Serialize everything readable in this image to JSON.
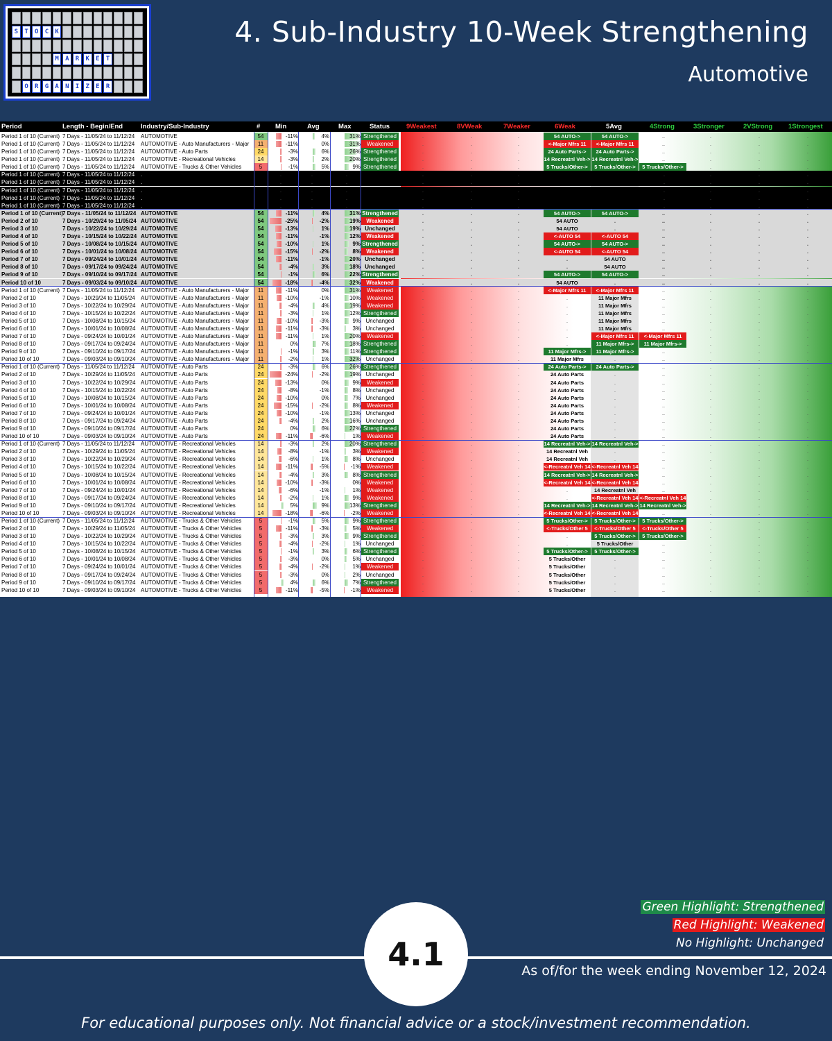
{
  "logo": {
    "words": [
      "STOCK",
      "MARKET",
      "ORGANIZER"
    ]
  },
  "header": {
    "title": "4. Sub-Industry 10-Week Strengthening",
    "subtitle": "Automotive"
  },
  "table": {
    "columns": [
      "Period",
      "Length - Begin/End",
      "Industry/Sub-Industry",
      "#",
      "Min",
      "Avg",
      "Max",
      "Status",
      "9Weakest",
      "8VWeak",
      "7Weaker",
      "6Weak",
      "5Avg",
      "4Strong",
      "3Stronger",
      "2VStrong",
      "1Strongest"
    ],
    "rows": [
      [
        "Period 1 of 10 (Current)",
        "7 Days - 11/05/24 to 11/12/24",
        "AUTOMOTIVE",
        "54",
        "-11%",
        "4%",
        "31%",
        "Strengthened",
        "54 AUTO->",
        "54 AUTO->",
        ""
      ],
      [
        "Period 1 of 10 (Current)",
        "7 Days - 11/05/24 to 11/12/24",
        "AUTOMOTIVE - Auto Manufacturers - Major",
        "11",
        "-11%",
        "0%",
        "31%",
        "Weakened",
        "<-Major Mfrs 11",
        "<-Major Mfrs 11",
        ""
      ],
      [
        "Period 1 of 10 (Current)",
        "7 Days - 11/05/24 to 11/12/24",
        "AUTOMOTIVE - Auto Parts",
        "24",
        "-3%",
        "6%",
        "26%",
        "Strengthened",
        "24 Auto Parts->",
        "24 Auto Parts->",
        ""
      ],
      [
        "Period 1 of 10 (Current)",
        "7 Days - 11/05/24 to 11/12/24",
        "AUTOMOTIVE - Recreational Vehicles",
        "14",
        "-3%",
        "2%",
        "20%",
        "Strengthened",
        "14 Recreatnl Veh->",
        "14 Recreatnl Veh->",
        ""
      ],
      [
        "Period 1 of 10 (Current)",
        "7 Days - 11/05/24 to 11/12/24",
        "AUTOMOTIVE - Trucks & Other Vehicles",
        "5",
        "-1%",
        "5%",
        "9%",
        "Strengthened",
        "5 Trucks/Other->",
        "5 Trucks/Other->",
        "5 Trucks/Other->"
      ],
      [
        "Period 1 of 10 (Current)",
        "7 Days - 11/05/24 to 11/12/24",
        ".",
        "",
        "",
        "",
        "",
        "",
        "",
        "",
        ""
      ],
      [
        "Period 1 of 10 (Current)",
        "7 Days - 11/05/24 to 11/12/24",
        ".",
        "",
        "",
        "",
        "",
        "",
        "",
        "",
        ""
      ],
      [
        "Period 1 of 10 (Current)",
        "7 Days - 11/05/24 to 11/12/24",
        ".",
        "",
        "",
        "",
        "",
        "",
        "",
        "",
        ""
      ],
      [
        "Period 1 of 10 (Current)",
        "7 Days - 11/05/24 to 11/12/24",
        ".",
        "",
        "",
        "",
        "",
        "",
        "",
        "",
        ""
      ],
      [
        "Period 1 of 10 (Current)",
        "7 Days - 11/05/24 to 11/12/24",
        ".",
        "",
        "",
        "",
        "",
        "",
        "",
        "",
        ""
      ],
      [
        "Period 1 of 10 (Current)",
        "7 Days - 11/05/24 to 11/12/24",
        "AUTOMOTIVE",
        "54",
        "-11%",
        "4%",
        "31%",
        "Strengthened",
        "54 AUTO->",
        "54 AUTO->",
        ""
      ],
      [
        "Period 2 of 10",
        "7 Days - 10/29/24 to 11/05/24",
        "AUTOMOTIVE",
        "54",
        "-25%",
        "-2%",
        "19%",
        "Weakened",
        "54 AUTO",
        "",
        ""
      ],
      [
        "Period 3 of 10",
        "7 Days - 10/22/24 to 10/29/24",
        "AUTOMOTIVE",
        "54",
        "-13%",
        "1%",
        "19%",
        "Unchanged",
        "54 AUTO",
        "",
        ""
      ],
      [
        "Period 4 of 10",
        "7 Days - 10/15/24 to 10/22/24",
        "AUTOMOTIVE",
        "54",
        "-11%",
        "-1%",
        "12%",
        "Weakened",
        "<-AUTO 54",
        "<-AUTO 54",
        ""
      ],
      [
        "Period 5 of 10",
        "7 Days - 10/08/24 to 10/15/24",
        "AUTOMOTIVE",
        "54",
        "-10%",
        "1%",
        "9%",
        "Strengthened",
        "54 AUTO->",
        "54 AUTO->",
        ""
      ],
      [
        "Period 6 of 10",
        "7 Days - 10/01/24 to 10/08/24",
        "AUTOMOTIVE",
        "54",
        "-15%",
        "-2%",
        "8%",
        "Weakened",
        "<-AUTO 54",
        "<-AUTO 54",
        ""
      ],
      [
        "Period 7 of 10",
        "7 Days - 09/24/24 to 10/01/24",
        "AUTOMOTIVE",
        "54",
        "-11%",
        "-1%",
        "20%",
        "Unchanged",
        "",
        "54 AUTO",
        ""
      ],
      [
        "Period 8 of 10",
        "7 Days - 09/17/24 to 09/24/24",
        "AUTOMOTIVE",
        "54",
        "-4%",
        "3%",
        "18%",
        "Unchanged",
        "",
        "54 AUTO",
        ""
      ],
      [
        "Period 9 of 10",
        "7 Days - 09/10/24 to 09/17/24",
        "AUTOMOTIVE",
        "54",
        "-1%",
        "6%",
        "22%",
        "Strengthened",
        "54 AUTO->",
        "54 AUTO->",
        ""
      ],
      [
        "Period 10 of 10",
        "7 Days - 09/03/24 to 09/10/24",
        "AUTOMOTIVE",
        "54",
        "-18%",
        "-4%",
        "32%",
        "Weakened",
        "54 AUTO",
        "",
        ""
      ],
      [
        "Period 1 of 10 (Current)",
        "7 Days - 11/05/24 to 11/12/24",
        "AUTOMOTIVE - Auto Manufacturers - Major",
        "11",
        "-11%",
        "0%",
        "31%",
        "Weakened",
        "<-Major Mfrs 11",
        "<-Major Mfrs 11",
        ""
      ],
      [
        "Period 2 of 10",
        "7 Days - 10/29/24 to 11/05/24",
        "AUTOMOTIVE - Auto Manufacturers - Major",
        "11",
        "-10%",
        "-1%",
        "10%",
        "Weakened",
        "",
        "11 Major Mfrs",
        ""
      ],
      [
        "Period 3 of 10",
        "7 Days - 10/22/24 to 10/29/24",
        "AUTOMOTIVE - Auto Manufacturers - Major",
        "11",
        "-4%",
        "4%",
        "19%",
        "Weakened",
        "",
        "11 Major Mfrs",
        ""
      ],
      [
        "Period 4 of 10",
        "7 Days - 10/15/24 to 10/22/24",
        "AUTOMOTIVE - Auto Manufacturers - Major",
        "11",
        "-3%",
        "1%",
        "12%",
        "Strengthened",
        "",
        "11 Major Mfrs",
        ""
      ],
      [
        "Period 5 of 10",
        "7 Days - 10/08/24 to 10/15/24",
        "AUTOMOTIVE - Auto Manufacturers - Major",
        "11",
        "-10%",
        "-3%",
        "9%",
        "Unchanged",
        "",
        "11 Major Mfrs",
        ""
      ],
      [
        "Period 6 of 10",
        "7 Days - 10/01/24 to 10/08/24",
        "AUTOMOTIVE - Auto Manufacturers - Major",
        "11",
        "-11%",
        "-3%",
        "3%",
        "Unchanged",
        "",
        "11 Major Mfrs",
        ""
      ],
      [
        "Period 7 of 10",
        "7 Days - 09/24/24 to 10/01/24",
        "AUTOMOTIVE - Auto Manufacturers - Major",
        "11",
        "-11%",
        "1%",
        "20%",
        "Weakened",
        "",
        "<-Major Mfrs 11",
        "<-Major Mfrs 11"
      ],
      [
        "Period 8 of 10",
        "7 Days - 09/17/24 to 09/24/24",
        "AUTOMOTIVE - Auto Manufacturers - Major",
        "11",
        "0%",
        "7%",
        "18%",
        "Strengthened",
        "",
        "11 Major Mfrs->",
        "11 Major Mfrs->"
      ],
      [
        "Period 9 of 10",
        "7 Days - 09/10/24 to 09/17/24",
        "AUTOMOTIVE - Auto Manufacturers - Major",
        "11",
        "-1%",
        "3%",
        "11%",
        "Strengthened",
        "11 Major Mfrs->",
        "11 Major Mfrs->",
        ""
      ],
      [
        "Period 10 of 10",
        "7 Days - 09/03/24 to 09/10/24",
        "AUTOMOTIVE - Auto Manufacturers - Major",
        "11",
        "-2%",
        "1%",
        "32%",
        "Unchanged",
        "11 Major Mfrs",
        "",
        ""
      ],
      [
        "Period 1 of 10 (Current)",
        "7 Days - 11/05/24 to 11/12/24",
        "AUTOMOTIVE - Auto Parts",
        "24",
        "-3%",
        "6%",
        "26%",
        "Strengthened",
        "24 Auto Parts->",
        "24 Auto Parts->",
        ""
      ],
      [
        "Period 2 of 10",
        "7 Days - 10/29/24 to 11/05/24",
        "AUTOMOTIVE - Auto Parts",
        "24",
        "-24%",
        "-2%",
        "19%",
        "Unchanged",
        "24 Auto Parts",
        "",
        ""
      ],
      [
        "Period 3 of 10",
        "7 Days - 10/22/24 to 10/29/24",
        "AUTOMOTIVE - Auto Parts",
        "24",
        "-13%",
        "0%",
        "9%",
        "Weakened",
        "24 Auto Parts",
        "",
        ""
      ],
      [
        "Period 4 of 10",
        "7 Days - 10/15/24 to 10/22/24",
        "AUTOMOTIVE - Auto Parts",
        "24",
        "-8%",
        "-1%",
        "8%",
        "Unchanged",
        "24 Auto Parts",
        "",
        ""
      ],
      [
        "Period 5 of 10",
        "7 Days - 10/08/24 to 10/15/24",
        "AUTOMOTIVE - Auto Parts",
        "24",
        "-10%",
        "0%",
        "7%",
        "Unchanged",
        "24 Auto Parts",
        "",
        ""
      ],
      [
        "Period 6 of 10",
        "7 Days - 10/01/24 to 10/08/24",
        "AUTOMOTIVE - Auto Parts",
        "24",
        "-15%",
        "-2%",
        "8%",
        "Weakened",
        "24 Auto Parts",
        "",
        ""
      ],
      [
        "Period 7 of 10",
        "7 Days - 09/24/24 to 10/01/24",
        "AUTOMOTIVE - Auto Parts",
        "24",
        "-10%",
        "-1%",
        "13%",
        "Unchanged",
        "24 Auto Parts",
        "",
        ""
      ],
      [
        "Period 8 of 10",
        "7 Days - 09/17/24 to 09/24/24",
        "AUTOMOTIVE - Auto Parts",
        "24",
        "-4%",
        "2%",
        "16%",
        "Unchanged",
        "24 Auto Parts",
        "",
        ""
      ],
      [
        "Period 9 of 10",
        "7 Days - 09/10/24 to 09/17/24",
        "AUTOMOTIVE - Auto Parts",
        "24",
        "0%",
        "6%",
        "22%",
        "Strengthened",
        "24 Auto Parts",
        "",
        ""
      ],
      [
        "Period 10 of 10",
        "7 Days - 09/03/24 to 09/10/24",
        "AUTOMOTIVE - Auto Parts",
        "24",
        "-11%",
        "-6%",
        "1%",
        "Weakened",
        "24 Auto Parts",
        "",
        ""
      ],
      [
        "Period 1 of 10 (Current)",
        "7 Days - 11/05/24 to 11/12/24",
        "AUTOMOTIVE - Recreational Vehicles",
        "14",
        "-3%",
        "2%",
        "20%",
        "Strengthened",
        "14 Recreatnl Veh->",
        "14 Recreatnl Veh->",
        ""
      ],
      [
        "Period 2 of 10",
        "7 Days - 10/29/24 to 11/05/24",
        "AUTOMOTIVE - Recreational Vehicles",
        "14",
        "-8%",
        "-1%",
        "3%",
        "Weakened",
        "14 Recreatnl Veh",
        "",
        ""
      ],
      [
        "Period 3 of 10",
        "7 Days - 10/22/24 to 10/29/24",
        "AUTOMOTIVE - Recreational Vehicles",
        "14",
        "-6%",
        "1%",
        "8%",
        "Unchanged",
        "14 Recreatnl Veh",
        "",
        ""
      ],
      [
        "Period 4 of 10",
        "7 Days - 10/15/24 to 10/22/24",
        "AUTOMOTIVE - Recreational Vehicles",
        "14",
        "-11%",
        "-5%",
        "-1%",
        "Weakened",
        "<-Recreatnl Veh 14",
        "<-Recreatnl Veh 14",
        ""
      ],
      [
        "Period 5 of 10",
        "7 Days - 10/08/24 to 10/15/24",
        "AUTOMOTIVE - Recreational Vehicles",
        "14",
        "-4%",
        "3%",
        "8%",
        "Strengthened",
        "14 Recreatnl Veh->",
        "14 Recreatnl Veh->",
        ""
      ],
      [
        "Period 6 of 10",
        "7 Days - 10/01/24 to 10/08/24",
        "AUTOMOTIVE - Recreational Vehicles",
        "14",
        "-10%",
        "-3%",
        "0%",
        "Weakened",
        "<-Recreatnl Veh 14",
        "<-Recreatnl Veh 14",
        ""
      ],
      [
        "Period 7 of 10",
        "7 Days - 09/24/24 to 10/01/24",
        "AUTOMOTIVE - Recreational Vehicles",
        "14",
        "-6%",
        "-1%",
        "1%",
        "Weakened",
        "",
        "14 Recreatnl Veh",
        ""
      ],
      [
        "Period 8 of 10",
        "7 Days - 09/17/24 to 09/24/24",
        "AUTOMOTIVE - Recreational Vehicles",
        "14",
        "-2%",
        "1%",
        "9%",
        "Weakened",
        "",
        "<-Recreatnl Veh 14",
        "<-Recreatnl Veh 14"
      ],
      [
        "Period 9 of 10",
        "7 Days - 09/10/24 to 09/17/24",
        "AUTOMOTIVE - Recreational Vehicles",
        "14",
        "5%",
        "9%",
        "13%",
        "Strengthened",
        "14 Recreatnl Veh->",
        "14 Recreatnl Veh->",
        "14 Recreatnl Veh->"
      ],
      [
        "Period 10 of 10",
        "7 Days - 09/03/24 to 09/10/24",
        "AUTOMOTIVE - Recreational Vehicles",
        "14",
        "-18%",
        "-6%",
        "-2%",
        "Weakened",
        "<-Recreatnl Veh 14",
        "<-Recreatnl Veh 14",
        ""
      ],
      [
        "Period 1 of 10 (Current)",
        "7 Days - 11/05/24 to 11/12/24",
        "AUTOMOTIVE - Trucks & Other Vehicles",
        "5",
        "-1%",
        "5%",
        "9%",
        "Strengthened",
        "5 Trucks/Other->",
        "5 Trucks/Other->",
        "5 Trucks/Other->"
      ],
      [
        "Period 2 of 10",
        "7 Days - 10/29/24 to 11/05/24",
        "AUTOMOTIVE - Trucks & Other Vehicles",
        "5",
        "-11%",
        "-3%",
        "5%",
        "Weakened",
        "<-Trucks/Other 5",
        "<-Trucks/Other 5",
        "<-Trucks/Other 5"
      ],
      [
        "Period 3 of 10",
        "7 Days - 10/22/24 to 10/29/24",
        "AUTOMOTIVE - Trucks & Other Vehicles",
        "5",
        "-3%",
        "3%",
        "9%",
        "Strengthened",
        "",
        "5 Trucks/Other->",
        "5 Trucks/Other->"
      ],
      [
        "Period 4 of 10",
        "7 Days - 10/15/24 to 10/22/24",
        "AUTOMOTIVE - Trucks & Other Vehicles",
        "5",
        "-4%",
        "-2%",
        "1%",
        "Unchanged",
        "",
        "5 Trucks/Other",
        ""
      ],
      [
        "Period 5 of 10",
        "7 Days - 10/08/24 to 10/15/24",
        "AUTOMOTIVE - Trucks & Other Vehicles",
        "5",
        "-1%",
        "3%",
        "6%",
        "Strengthened",
        "5 Trucks/Other->",
        "5 Trucks/Other->",
        ""
      ],
      [
        "Period 6 of 10",
        "7 Days - 10/01/24 to 10/08/24",
        "AUTOMOTIVE - Trucks & Other Vehicles",
        "5",
        "-3%",
        "0%",
        "5%",
        "Unchanged",
        "5 Trucks/Other",
        "",
        ""
      ],
      [
        "Period 7 of 10",
        "7 Days - 09/24/24 to 10/01/24",
        "AUTOMOTIVE - Trucks & Other Vehicles",
        "5",
        "-4%",
        "-2%",
        "1%",
        "Weakened",
        "5 Trucks/Other",
        "",
        ""
      ],
      [
        "Period 8 of 10",
        "7 Days - 09/17/24 to 09/24/24",
        "AUTOMOTIVE - Trucks & Other Vehicles",
        "5",
        "-3%",
        "0%",
        "2%",
        "Unchanged",
        "5 Trucks/Other",
        "",
        ""
      ],
      [
        "Period 9 of 10",
        "7 Days - 09/10/24 to 09/17/24",
        "AUTOMOTIVE - Trucks & Other Vehicles",
        "5",
        "4%",
        "6%",
        "7%",
        "Strengthened",
        "5 Trucks/Other",
        "",
        ""
      ],
      [
        "Period 10 of 10",
        "7 Days - 09/03/24 to 09/10/24",
        "AUTOMOTIVE - Trucks & Other Vehicles",
        "5",
        "-11%",
        "-5%",
        "-1%",
        "Weakened",
        "5 Trucks/Other",
        "",
        ""
      ]
    ]
  },
  "legend": {
    "strengthened": "Green Highlight: Strengthened",
    "weakened": "Red Highlight: Weakened",
    "unchanged": "No Highlight: Unchanged",
    "strengthened_color": "#1e8a49",
    "weakened_color": "#e41b1b"
  },
  "page_number": "4.1",
  "as_of": "As of/for the week ending November 12, 2024",
  "disclaimer": "For educational purposes only. Not financial advice or a stock/investment recommendation."
}
